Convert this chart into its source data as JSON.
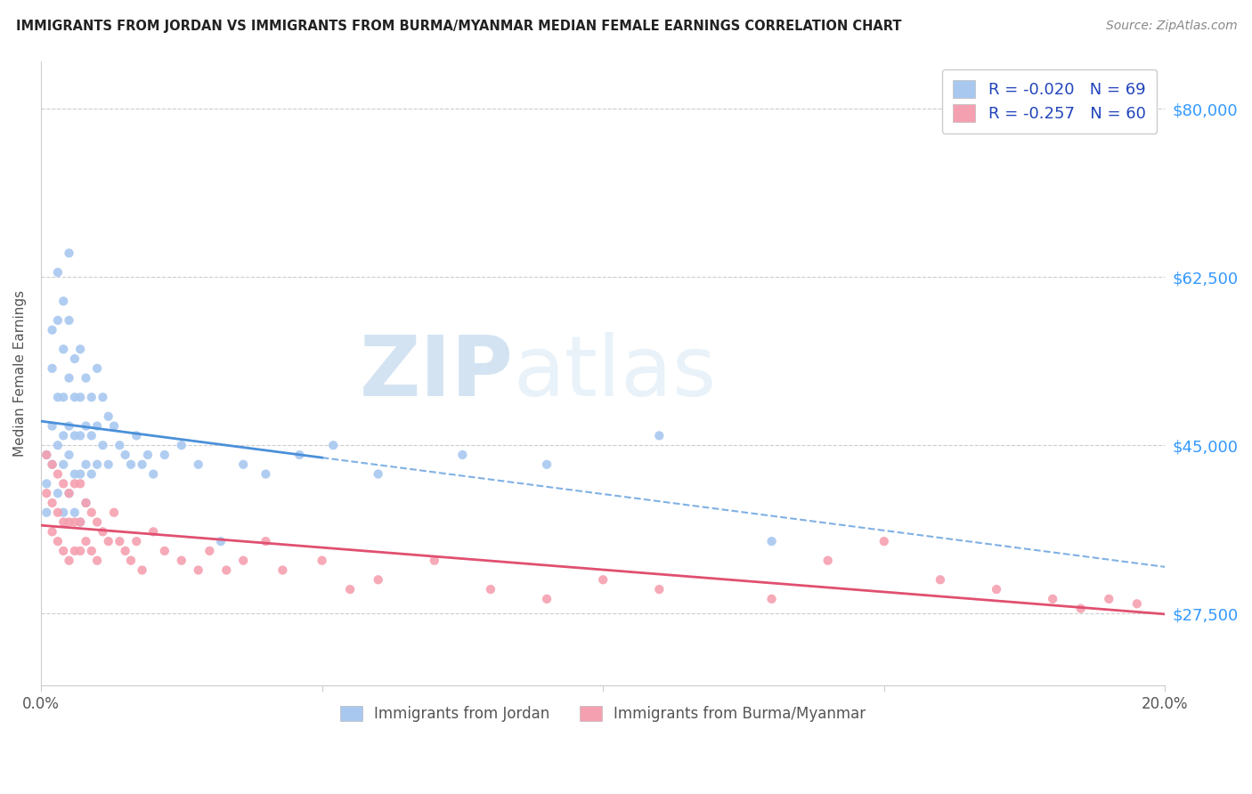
{
  "title": "IMMIGRANTS FROM JORDAN VS IMMIGRANTS FROM BURMA/MYANMAR MEDIAN FEMALE EARNINGS CORRELATION CHART",
  "source": "Source: ZipAtlas.com",
  "ylabel": "Median Female Earnings",
  "xlim": [
    0.0,
    0.2
  ],
  "ylim": [
    20000,
    85000
  ],
  "yticks": [
    27500,
    45000,
    62500,
    80000
  ],
  "ytick_labels": [
    "$27,500",
    "$45,000",
    "$62,500",
    "$80,000"
  ],
  "xticks": [
    0.0,
    0.05,
    0.1,
    0.15,
    0.2
  ],
  "xtick_labels": [
    "0.0%",
    "",
    "",
    "",
    "20.0%"
  ],
  "jordan_color": "#a8c8f0",
  "jordan_line_color": "#4a90d9",
  "burma_color": "#f5a0b0",
  "burma_line_color": "#e05070",
  "jordan_R": -0.02,
  "jordan_N": 69,
  "burma_R": -0.257,
  "burma_N": 60,
  "legend_text_color": "#2244bb",
  "watermark_color": "#c8e0f0",
  "jordan_x": [
    0.001,
    0.001,
    0.001,
    0.002,
    0.002,
    0.002,
    0.002,
    0.003,
    0.003,
    0.003,
    0.003,
    0.003,
    0.004,
    0.004,
    0.004,
    0.004,
    0.004,
    0.004,
    0.005,
    0.005,
    0.005,
    0.005,
    0.005,
    0.005,
    0.006,
    0.006,
    0.006,
    0.006,
    0.006,
    0.007,
    0.007,
    0.007,
    0.007,
    0.007,
    0.008,
    0.008,
    0.008,
    0.008,
    0.009,
    0.009,
    0.009,
    0.01,
    0.01,
    0.01,
    0.011,
    0.011,
    0.012,
    0.012,
    0.013,
    0.014,
    0.015,
    0.016,
    0.017,
    0.018,
    0.019,
    0.02,
    0.022,
    0.025,
    0.028,
    0.032,
    0.036,
    0.04,
    0.046,
    0.052,
    0.06,
    0.075,
    0.09,
    0.11,
    0.13
  ],
  "jordan_y": [
    44000,
    41000,
    38000,
    57000,
    53000,
    47000,
    43000,
    63000,
    58000,
    50000,
    45000,
    40000,
    60000,
    55000,
    50000,
    46000,
    43000,
    38000,
    65000,
    58000,
    52000,
    47000,
    44000,
    40000,
    54000,
    50000,
    46000,
    42000,
    38000,
    55000,
    50000,
    46000,
    42000,
    37000,
    52000,
    47000,
    43000,
    39000,
    50000,
    46000,
    42000,
    53000,
    47000,
    43000,
    50000,
    45000,
    48000,
    43000,
    47000,
    45000,
    44000,
    43000,
    46000,
    43000,
    44000,
    42000,
    44000,
    45000,
    43000,
    35000,
    43000,
    42000,
    44000,
    45000,
    42000,
    44000,
    43000,
    46000,
    35000
  ],
  "burma_x": [
    0.001,
    0.001,
    0.002,
    0.002,
    0.002,
    0.003,
    0.003,
    0.003,
    0.004,
    0.004,
    0.004,
    0.005,
    0.005,
    0.005,
    0.006,
    0.006,
    0.006,
    0.007,
    0.007,
    0.007,
    0.008,
    0.008,
    0.009,
    0.009,
    0.01,
    0.01,
    0.011,
    0.012,
    0.013,
    0.014,
    0.015,
    0.016,
    0.017,
    0.018,
    0.02,
    0.022,
    0.025,
    0.028,
    0.03,
    0.033,
    0.036,
    0.04,
    0.043,
    0.05,
    0.055,
    0.06,
    0.07,
    0.08,
    0.09,
    0.1,
    0.11,
    0.13,
    0.14,
    0.15,
    0.16,
    0.17,
    0.18,
    0.185,
    0.19,
    0.195
  ],
  "burma_y": [
    44000,
    40000,
    43000,
    39000,
    36000,
    42000,
    38000,
    35000,
    41000,
    37000,
    34000,
    40000,
    37000,
    33000,
    41000,
    37000,
    34000,
    41000,
    37000,
    34000,
    39000,
    35000,
    38000,
    34000,
    37000,
    33000,
    36000,
    35000,
    38000,
    35000,
    34000,
    33000,
    35000,
    32000,
    36000,
    34000,
    33000,
    32000,
    34000,
    32000,
    33000,
    35000,
    32000,
    33000,
    30000,
    31000,
    33000,
    30000,
    29000,
    31000,
    30000,
    29000,
    33000,
    35000,
    31000,
    30000,
    29000,
    28000,
    29000,
    28500
  ]
}
